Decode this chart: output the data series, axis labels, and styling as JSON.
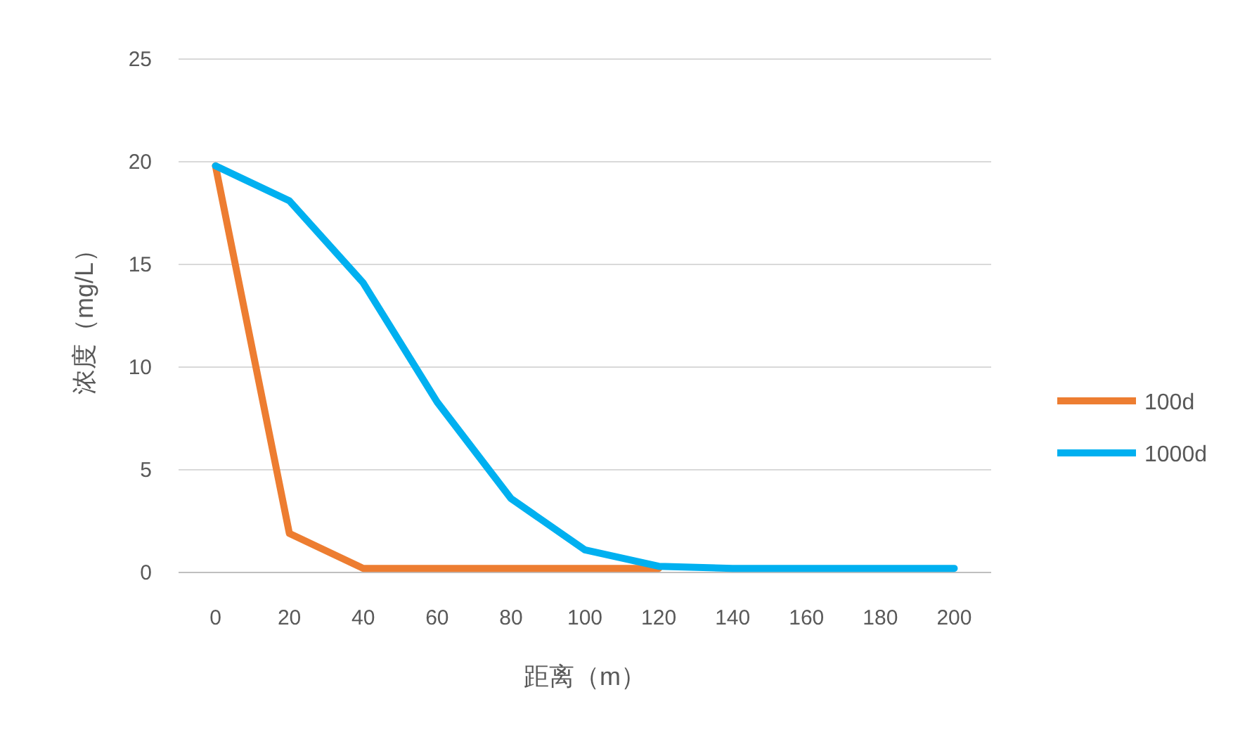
{
  "chart_data": {
    "type": "line",
    "xlabel": "距离（m）",
    "ylabel": "浓度（mg/L）",
    "categories": [
      "0",
      "20",
      "40",
      "60",
      "80",
      "100",
      "120",
      "140",
      "160",
      "180",
      "200"
    ],
    "series": [
      {
        "name": "100d",
        "color": "#ed7d31",
        "values": [
          19.8,
          1.9,
          0.2,
          0.2,
          0.2,
          0.2,
          0.2,
          null,
          null,
          null,
          null
        ]
      },
      {
        "name": "1000d",
        "color": "#00b0f0",
        "values": [
          19.8,
          18.1,
          14.1,
          8.3,
          3.6,
          1.1,
          0.3,
          0.2,
          0.2,
          0.2,
          0.2
        ]
      }
    ],
    "ylim": [
      0,
      25
    ],
    "yticks": [
      0,
      5,
      10,
      15,
      20,
      25
    ],
    "grid": "y",
    "legend": "right"
  }
}
